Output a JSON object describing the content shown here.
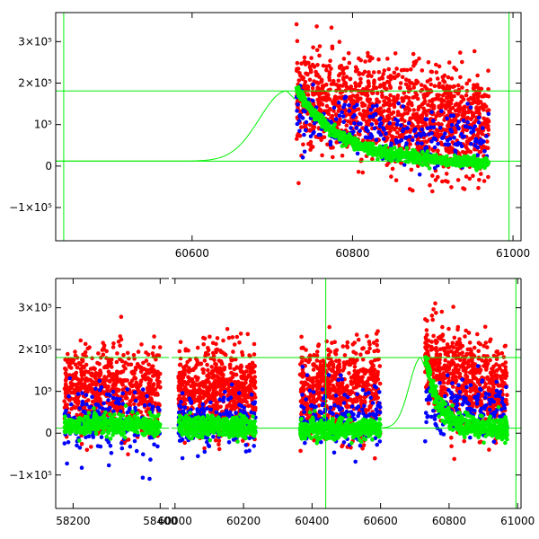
{
  "chart_data": [
    {
      "type": "scatter",
      "panel": "top",
      "title": "",
      "xlabel": "",
      "ylabel": "",
      "xlim": [
        60430,
        61010
      ],
      "ylim": [
        -180000,
        370000
      ],
      "x_ticks": [
        60600,
        60800,
        61000
      ],
      "y_ticks": [
        {
          "value": -100000,
          "label": "−1×10⁵"
        },
        {
          "value": 0,
          "label": "0"
        },
        {
          "value": 100000,
          "label": "10⁵"
        },
        {
          "value": 200000,
          "label": "2×10⁵"
        },
        {
          "value": 300000,
          "label": "3×10⁵"
        }
      ],
      "series": [
        {
          "name": "red",
          "color": "#ff0000",
          "x_range": [
            60730,
            60970
          ],
          "center_start": 180000,
          "center_end": 100000,
          "spread": 110000
        },
        {
          "name": "blue",
          "color": "#0000ff",
          "x_range": [
            60730,
            60970
          ],
          "center_start": 150000,
          "center_end": 60000,
          "spread": 60000
        },
        {
          "name": "green",
          "color": "#00ee00",
          "x_range": [
            60730,
            60970
          ],
          "center_start": 165000,
          "center_end": 5000,
          "spread": 15000
        }
      ],
      "model_curve": {
        "color": "#00ee00",
        "baseline": 12000,
        "peak": 181000,
        "peak_x": 60718,
        "rise_width": 48
      },
      "reference_lines": {
        "color": "#00ee00",
        "h": [
          181000,
          12000
        ],
        "v": [
          60440,
          60995
        ]
      }
    },
    {
      "type": "scatter",
      "panel": "bottom",
      "title": "",
      "xlabel": "",
      "ylabel": "",
      "segments": [
        {
          "xlim": [
            58160,
            58420
          ],
          "x_ticks": [
            58200,
            58400
          ]
        },
        {
          "xlim": [
            59990,
            61010
          ],
          "x_ticks": [
            60000,
            60200,
            60400,
            60600,
            60800,
            61000
          ]
        }
      ],
      "ylim": [
        -180000,
        370000
      ],
      "y_ticks": [
        {
          "value": -100000,
          "label": "−1×10⁵"
        },
        {
          "value": 0,
          "label": "0"
        },
        {
          "value": 100000,
          "label": "10⁵"
        },
        {
          "value": 200000,
          "label": "2×10⁵"
        },
        {
          "value": 300000,
          "label": "3×10⁵"
        }
      ],
      "clusters": [
        {
          "x_range": [
            58180,
            58400
          ],
          "red_center": 100000,
          "red_spread": 100000,
          "blue_center": 30000,
          "blue_spread": 90000,
          "green_center": 20000
        },
        {
          "x_range": [
            60010,
            60235
          ],
          "red_center": 100000,
          "red_spread": 100000,
          "blue_center": 30000,
          "blue_spread": 70000,
          "green_center": 15000
        },
        {
          "x_range": [
            60365,
            60600
          ],
          "red_center": 100000,
          "red_spread": 110000,
          "blue_center": 40000,
          "blue_spread": 80000,
          "green_center": 10000
        },
        {
          "x_range": [
            60730,
            60970
          ],
          "red_center": 110000,
          "red_spread": 110000,
          "blue_center": 60000,
          "blue_spread": 70000,
          "green_center": 10000,
          "decay": true
        }
      ],
      "series": [
        {
          "name": "red",
          "color": "#ff0000"
        },
        {
          "name": "blue",
          "color": "#0000ff"
        },
        {
          "name": "green",
          "color": "#00ee00"
        }
      ],
      "model_curve": {
        "color": "#00ee00",
        "baseline": 12000,
        "peak": 181000,
        "peak_x": 60718,
        "rise_width": 48
      },
      "reference_lines": {
        "color": "#00ee00",
        "h": [
          181000,
          12000
        ],
        "v": [
          60440,
          60995
        ]
      }
    }
  ]
}
